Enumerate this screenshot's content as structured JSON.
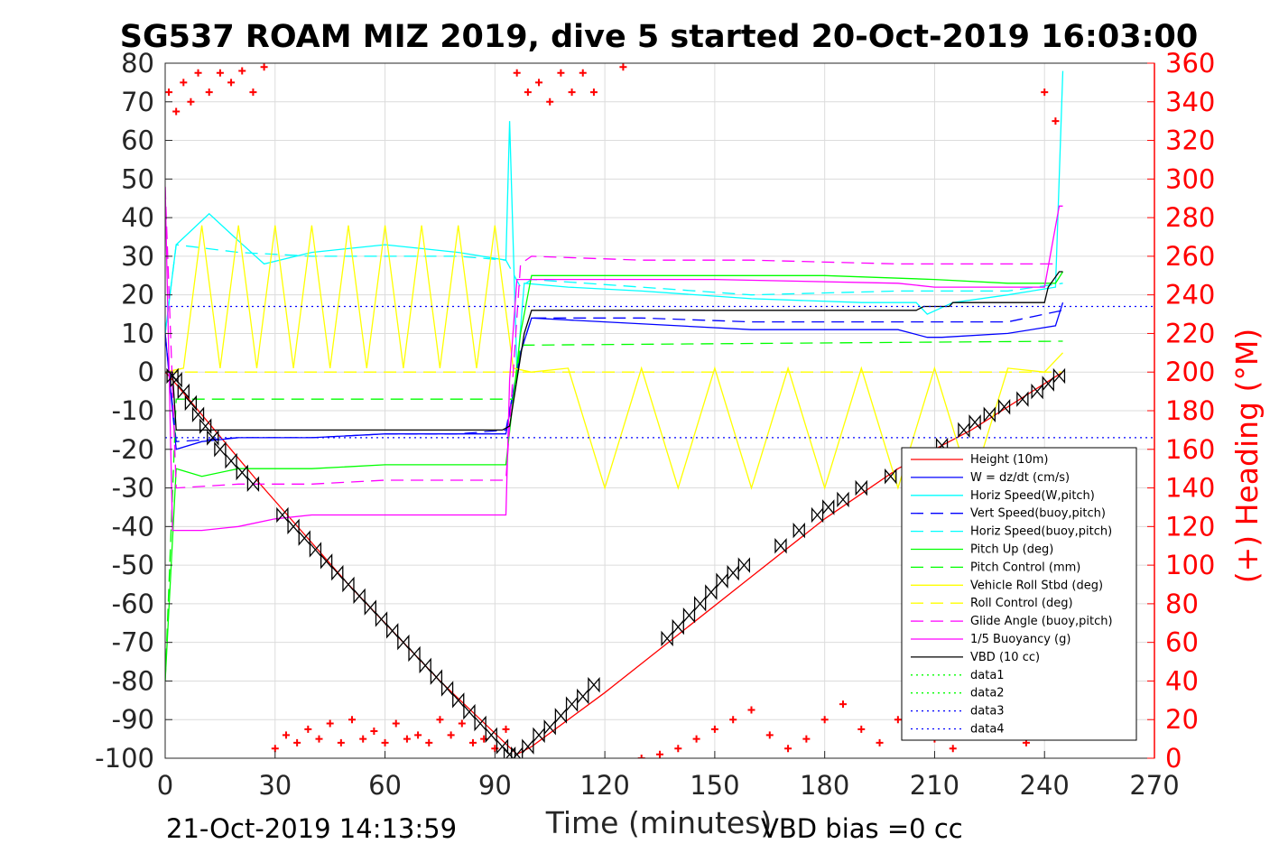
{
  "chart_data": {
    "type": "line",
    "title": "SG537 ROAM MIZ 2019, dive 5 started 20-Oct-2019 16:03:00",
    "xlabel": "Time (minutes)",
    "ylabel_right": "(+) Heading (°M)",
    "footer_left": "21-Oct-2019 14:13:59",
    "footer_right": "VBD bias =0 cc",
    "xlim": [
      0,
      270
    ],
    "ylim": [
      -100,
      80
    ],
    "ylim_right": [
      0,
      360
    ],
    "x_ticks": [
      "0",
      "30",
      "60",
      "90",
      "120",
      "150",
      "180",
      "210",
      "240",
      "270"
    ],
    "y_ticks": [
      "80",
      "70",
      "60",
      "50",
      "40",
      "30",
      "20",
      "10",
      "0",
      "-10",
      "-20",
      "-30",
      "-40",
      "-50",
      "-60",
      "-70",
      "-80",
      "-90",
      "-100"
    ],
    "y_ticks_right": [
      "360",
      "340",
      "320",
      "300",
      "280",
      "260",
      "240",
      "220",
      "200",
      "180",
      "160",
      "140",
      "120",
      "100",
      "80",
      "60",
      "40",
      "20",
      "0"
    ],
    "grid": true,
    "legend_position": "lower-right",
    "series": [
      {
        "name": "Height (10m)",
        "color": "#ff0000",
        "style": "solid",
        "x": [
          0,
          2,
          25,
          50,
          75,
          96,
          100,
          120,
          140,
          160,
          180,
          200,
          220,
          245
        ],
        "y": [
          0,
          -2,
          -28,
          -55,
          -80,
          -99,
          -97,
          -83,
          -68,
          -53,
          -38,
          -25,
          -15,
          0
        ]
      },
      {
        "name": "W = dz/dt (cm/s)",
        "color": "#0000ff",
        "style": "solid",
        "x": [
          0,
          3,
          10,
          20,
          40,
          60,
          80,
          93,
          97,
          100,
          120,
          140,
          160,
          180,
          200,
          208,
          212,
          230,
          243,
          245
        ],
        "y": [
          10,
          -20,
          -18,
          -17,
          -17,
          -16,
          -16,
          -16,
          5,
          14,
          13,
          12,
          11,
          11,
          11,
          9,
          9,
          10,
          12,
          18
        ]
      },
      {
        "name": "Horiz Speed(W,pitch)",
        "color": "#00ffff",
        "style": "solid",
        "x": [
          0,
          3,
          12,
          20,
          27,
          40,
          60,
          80,
          93,
          94,
          96,
          98,
          110,
          130,
          160,
          190,
          205,
          208,
          215,
          230,
          243,
          245
        ],
        "y": [
          10,
          33,
          41,
          34,
          28,
          31,
          33,
          31,
          29,
          65,
          0,
          23,
          22,
          21,
          19,
          18,
          18,
          15,
          18,
          20,
          22,
          78
        ]
      },
      {
        "name": "Vert Speed(buoy,pitch)",
        "color": "#0000ff",
        "style": "dashed",
        "x": [
          0,
          3,
          20,
          40,
          60,
          80,
          93,
          97,
          100,
          130,
          160,
          200,
          230,
          245
        ],
        "y": [
          10,
          -18,
          -17,
          -17,
          -16,
          -16,
          -15,
          5,
          14,
          14,
          13,
          13,
          13,
          16
        ]
      },
      {
        "name": "Horiz Speed(buoy,pitch)",
        "color": "#00ffff",
        "style": "dashed",
        "x": [
          0,
          3,
          20,
          40,
          60,
          80,
          93,
          97,
          100,
          130,
          160,
          200,
          230,
          245
        ],
        "y": [
          10,
          33,
          31,
          30,
          30,
          30,
          29,
          22,
          24,
          22,
          20,
          21,
          21,
          23
        ]
      },
      {
        "name": "Pitch Up (deg)",
        "color": "#00ff00",
        "style": "solid",
        "x": [
          0,
          3,
          10,
          20,
          40,
          60,
          80,
          93,
          97,
          100,
          120,
          150,
          180,
          210,
          230,
          243,
          245
        ],
        "y": [
          -80,
          -25,
          -27,
          -25,
          -25,
          -24,
          -24,
          -24,
          10,
          25,
          25,
          25,
          25,
          24,
          23,
          23,
          26
        ]
      },
      {
        "name": "Pitch Control (mm)",
        "color": "#00ff00",
        "style": "dashed",
        "x": [
          0,
          3,
          95,
          97,
          100,
          245
        ],
        "y": [
          -80,
          -7,
          -7,
          7,
          7,
          8
        ]
      },
      {
        "name": "Vehicle Roll Stbd (deg)",
        "color": "#ffff00",
        "style": "solid",
        "x": [
          0,
          5,
          10,
          15,
          20,
          25,
          30,
          35,
          40,
          45,
          50,
          55,
          60,
          65,
          70,
          75,
          80,
          85,
          90,
          95,
          100,
          110,
          120,
          130,
          140,
          150,
          160,
          170,
          180,
          190,
          200,
          210,
          220,
          230,
          240,
          245
        ],
        "y": [
          0,
          1,
          38,
          1,
          38,
          1,
          38,
          1,
          38,
          1,
          38,
          1,
          38,
          1,
          38,
          1,
          38,
          1,
          38,
          1,
          0,
          1,
          -30,
          1,
          -30,
          1,
          -30,
          1,
          -30,
          1,
          -30,
          1,
          -30,
          1,
          0,
          5
        ]
      },
      {
        "name": "Roll Control (deg)",
        "color": "#ffff00",
        "style": "dashed",
        "x": [
          0,
          3,
          95,
          97,
          243,
          245
        ],
        "y": [
          0,
          0,
          0,
          0,
          0,
          0
        ]
      },
      {
        "name": "Glide Angle (buoy,pitch)",
        "color": "#ff00ff",
        "style": "dashed",
        "x": [
          0,
          3,
          20,
          40,
          60,
          80,
          93,
          97,
          100,
          130,
          160,
          200,
          230,
          243
        ],
        "y": [
          48,
          -30,
          -29,
          -29,
          -28,
          -28,
          -28,
          28,
          30,
          29,
          29,
          28,
          28,
          28
        ]
      },
      {
        "name": "1/5 Buoyancy (g)",
        "color": "#ff00ff",
        "style": "solid",
        "x": [
          0,
          2,
          10,
          20,
          30,
          40,
          60,
          80,
          93,
          94,
          96,
          100,
          150,
          200,
          210,
          240,
          244,
          245
        ],
        "y": [
          48,
          -41,
          -41,
          -40,
          -38,
          -37,
          -37,
          -37,
          -37,
          -2,
          24,
          24,
          24,
          23,
          22,
          22,
          43,
          43
        ]
      },
      {
        "name": "VBD (10 cc)",
        "color": "#000000",
        "style": "solid",
        "x": [
          0,
          2,
          3,
          92,
          94,
          98,
          100,
          205,
          207,
          214,
          215,
          236,
          240,
          241,
          244,
          245
        ],
        "y": [
          0,
          0,
          -15,
          -15,
          -14,
          10,
          16,
          16,
          17,
          17,
          18,
          18,
          18,
          22,
          26,
          26
        ]
      },
      {
        "name": "data1",
        "color": "#00ff00",
        "style": "dotted",
        "x": [],
        "y": []
      },
      {
        "name": "data2",
        "color": "#00ff00",
        "style": "dotted",
        "x": [],
        "y": []
      },
      {
        "name": "data3",
        "color": "#0000ff",
        "style": "dotted",
        "x": [
          0,
          270
        ],
        "y": [
          17,
          17
        ]
      },
      {
        "name": "data4",
        "color": "#0000ff",
        "style": "dotted",
        "x": [
          0,
          270
        ],
        "y": [
          -17,
          -17
        ]
      }
    ],
    "heading": {
      "name": "Heading",
      "color": "#ff0000",
      "marker": "+",
      "axis": "right",
      "x": [
        1,
        3,
        5,
        7,
        9,
        12,
        15,
        18,
        21,
        24,
        27,
        30,
        33,
        36,
        39,
        42,
        45,
        48,
        51,
        54,
        57,
        60,
        63,
        66,
        69,
        72,
        75,
        78,
        81,
        84,
        87,
        90,
        93,
        96,
        99,
        102,
        105,
        108,
        111,
        114,
        117,
        125,
        130,
        135,
        140,
        145,
        150,
        155,
        160,
        165,
        170,
        175,
        180,
        185,
        190,
        195,
        200,
        205,
        210,
        215,
        220,
        225,
        230,
        235,
        240,
        243
      ],
      "y": [
        345,
        335,
        350,
        340,
        355,
        345,
        355,
        350,
        356,
        345,
        358,
        5,
        12,
        8,
        15,
        10,
        18,
        8,
        20,
        10,
        14,
        8,
        18,
        10,
        12,
        8,
        20,
        12,
        18,
        8,
        10,
        5,
        15,
        355,
        345,
        350,
        340,
        355,
        345,
        355,
        345,
        358,
        0,
        2,
        5,
        10,
        15,
        20,
        25,
        12,
        5,
        10,
        20,
        28,
        15,
        8,
        20,
        25,
        10,
        5,
        15,
        22,
        12,
        8,
        345,
        330
      ]
    },
    "height_markers": {
      "marker": "hourglass",
      "x": [
        2,
        3,
        5,
        7,
        9,
        11,
        13,
        15,
        18,
        21,
        24,
        32,
        35,
        38,
        41,
        44,
        47,
        50,
        53,
        56,
        59,
        62,
        65,
        68,
        71,
        74,
        77,
        80,
        83,
        86,
        89,
        92,
        94,
        96,
        99,
        102,
        105,
        108,
        111,
        114,
        117,
        137,
        140,
        143,
        146,
        149,
        152,
        155,
        158,
        168,
        173,
        178,
        181,
        185,
        190,
        198,
        206,
        212,
        218,
        221,
        225,
        229,
        234,
        238,
        241,
        244
      ],
      "y": [
        -1,
        -2,
        -5,
        -8,
        -11,
        -14,
        -17,
        -20,
        -23,
        -26,
        -29,
        -37,
        -40,
        -43,
        -46,
        -49,
        -52,
        -55,
        -58,
        -61,
        -64,
        -67,
        -70,
        -73,
        -76,
        -79,
        -82,
        -85,
        -88,
        -91,
        -94,
        -97,
        -99,
        -99,
        -97,
        -94,
        -92,
        -89,
        -86,
        -84,
        -81,
        -69,
        -66,
        -63,
        -60,
        -57,
        -54,
        -52,
        -50,
        -45,
        -41,
        -37,
        -35,
        -33,
        -30,
        -27,
        -23,
        -19,
        -15,
        -13,
        -11,
        -9,
        -7,
        -5,
        -3,
        -1
      ]
    }
  }
}
